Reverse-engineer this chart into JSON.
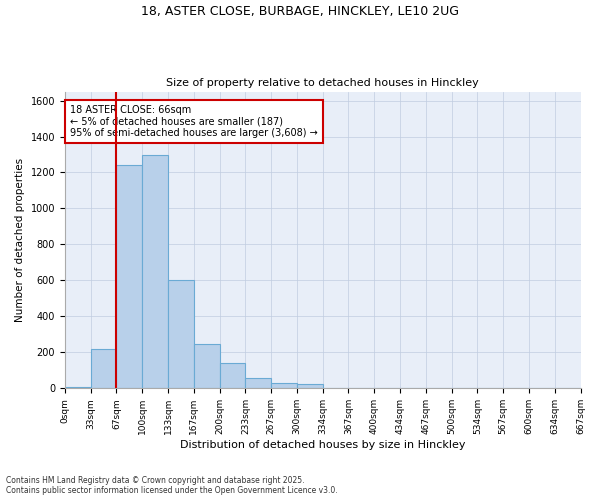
{
  "title1": "18, ASTER CLOSE, BURBAGE, HINCKLEY, LE10 2UG",
  "title2": "Size of property relative to detached houses in Hinckley",
  "xlabel": "Distribution of detached houses by size in Hinckley",
  "ylabel": "Number of detached properties",
  "bin_labels": [
    "0sqm",
    "33sqm",
    "67sqm",
    "100sqm",
    "133sqm",
    "167sqm",
    "200sqm",
    "233sqm",
    "267sqm",
    "300sqm",
    "334sqm",
    "367sqm",
    "400sqm",
    "434sqm",
    "467sqm",
    "500sqm",
    "534sqm",
    "567sqm",
    "600sqm",
    "634sqm",
    "667sqm"
  ],
  "bar_values": [
    10,
    220,
    1240,
    1300,
    605,
    245,
    140,
    55,
    30,
    22,
    0,
    0,
    0,
    0,
    0,
    0,
    0,
    0,
    0,
    0
  ],
  "bar_color": "#b8d0ea",
  "bar_edge_color": "#6aaad4",
  "bg_color": "#e8eef8",
  "grid_color": "#c0cce0",
  "subject_line_color": "#cc0000",
  "annotation_text": "18 ASTER CLOSE: 66sqm\n← 5% of detached houses are smaller (187)\n95% of semi-detached houses are larger (3,608) →",
  "annotation_box_color": "#cc0000",
  "ylim": [
    0,
    1650
  ],
  "footnote1": "Contains HM Land Registry data © Crown copyright and database right 2025.",
  "footnote2": "Contains public sector information licensed under the Open Government Licence v3.0."
}
